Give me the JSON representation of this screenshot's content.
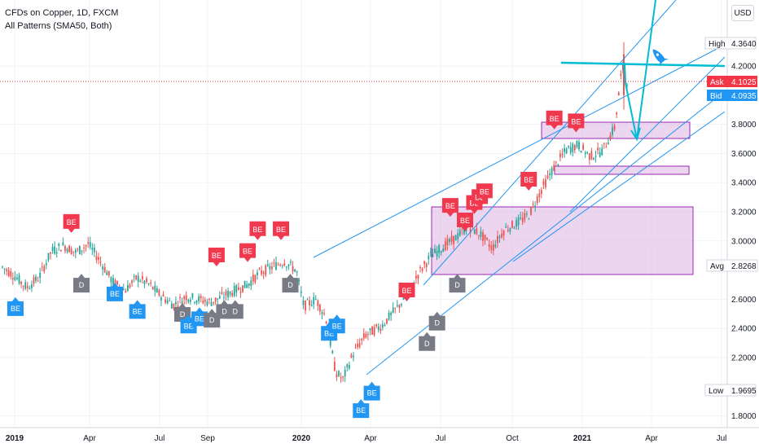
{
  "header": {
    "title": "CFDs on Copper, 1D, FXCM",
    "indicator": "All Patterns (SMA50, Both)",
    "currency": "USD"
  },
  "colors": {
    "up": "#26a69a",
    "down": "#ef5350",
    "bearish_badge": "#f0394f",
    "bullish_badge": "#2196f3",
    "doji_badge": "#787b86",
    "trendline": "#2196f3",
    "zone_fill": "#e1bee7",
    "zone_border": "#9c27b0",
    "drawing": "#00bcd4",
    "ask": "#f23645",
    "bid": "#2196f3"
  },
  "price_labels": {
    "high_label": "High",
    "high_value": "4.3640",
    "ask_label": "Ask",
    "ask_value": "4.1025",
    "bid_label": "Bid",
    "bid_value": "4.0935",
    "avg_label": "Avg",
    "avg_value": "2.8268",
    "low_label": "Low",
    "low_value": "1.9695"
  },
  "chart_data": {
    "type": "candlestick",
    "title": "CFDs on Copper, 1D, FXCM",
    "ylim": [
      1.72,
      4.75
    ],
    "y_ticks": [
      "4.2000",
      "3.8000",
      "3.6000",
      "3.4000",
      "3.2000",
      "3.0000",
      "2.6000",
      "2.4000",
      "2.2000",
      "1.8000"
    ],
    "x_ticks": [
      "2019",
      "Apr",
      "Jul",
      "Sep",
      "2020",
      "Apr",
      "Jul",
      "Oct",
      "2021",
      "Apr",
      "Jul"
    ],
    "grid": true,
    "path_points": [
      {
        "t": 0,
        "v": 2.82
      },
      {
        "t": 0.5,
        "v": 2.76
      },
      {
        "t": 1,
        "v": 2.68
      },
      {
        "t": 1.5,
        "v": 2.75
      },
      {
        "t": 2,
        "v": 2.93
      },
      {
        "t": 2.5,
        "v": 2.97
      },
      {
        "t": 3,
        "v": 2.92
      },
      {
        "t": 3.5,
        "v": 2.98
      },
      {
        "t": 4,
        "v": 2.86
      },
      {
        "t": 4.5,
        "v": 2.72
      },
      {
        "t": 5,
        "v": 2.66
      },
      {
        "t": 5.5,
        "v": 2.75
      },
      {
        "t": 6,
        "v": 2.7
      },
      {
        "t": 6.5,
        "v": 2.62
      },
      {
        "t": 7,
        "v": 2.56
      },
      {
        "t": 7.5,
        "v": 2.62
      },
      {
        "t": 8,
        "v": 2.6
      },
      {
        "t": 8.5,
        "v": 2.58
      },
      {
        "t": 9,
        "v": 2.62
      },
      {
        "t": 9.5,
        "v": 2.66
      },
      {
        "t": 10,
        "v": 2.7
      },
      {
        "t": 10.5,
        "v": 2.78
      },
      {
        "t": 11,
        "v": 2.82
      },
      {
        "t": 11.5,
        "v": 2.86
      },
      {
        "t": 12,
        "v": 2.8
      },
      {
        "t": 12.3,
        "v": 2.55
      },
      {
        "t": 12.8,
        "v": 2.6
      },
      {
        "t": 13.2,
        "v": 2.48
      },
      {
        "t": 13.6,
        "v": 2.1
      },
      {
        "t": 13.9,
        "v": 2.05
      },
      {
        "t": 14.3,
        "v": 2.22
      },
      {
        "t": 14.8,
        "v": 2.35
      },
      {
        "t": 15.5,
        "v": 2.42
      },
      {
        "t": 16,
        "v": 2.52
      },
      {
        "t": 16.5,
        "v": 2.62
      },
      {
        "t": 17,
        "v": 2.78
      },
      {
        "t": 17.5,
        "v": 2.9
      },
      {
        "t": 18,
        "v": 2.96
      },
      {
        "t": 18.5,
        "v": 3.02
      },
      {
        "t": 19,
        "v": 3.1
      },
      {
        "t": 19.5,
        "v": 3.05
      },
      {
        "t": 20,
        "v": 2.95
      },
      {
        "t": 20.5,
        "v": 3.08
      },
      {
        "t": 21,
        "v": 3.12
      },
      {
        "t": 21.5,
        "v": 3.18
      },
      {
        "t": 22,
        "v": 3.35
      },
      {
        "t": 22.5,
        "v": 3.5
      },
      {
        "t": 23,
        "v": 3.62
      },
      {
        "t": 23.5,
        "v": 3.66
      },
      {
        "t": 24,
        "v": 3.58
      },
      {
        "t": 24.5,
        "v": 3.62
      },
      {
        "t": 25,
        "v": 3.78
      },
      {
        "t": 25.3,
        "v": 4.2
      },
      {
        "t": 25.5,
        "v": 4.1
      }
    ],
    "badges": [
      {
        "type": "BE",
        "kind": "bull",
        "date": "2019-01-02",
        "price": 2.62
      },
      {
        "type": "BE",
        "kind": "bear",
        "date": "2019-03-15",
        "price": 3.05
      },
      {
        "type": "D",
        "kind": "doji",
        "date": "2019-03-28",
        "price": 2.78
      },
      {
        "type": "BE",
        "kind": "bull",
        "date": "2019-05-10",
        "price": 2.72
      },
      {
        "type": "BE",
        "kind": "bull",
        "date": "2019-06-08",
        "price": 2.6
      },
      {
        "type": "D",
        "kind": "doji",
        "date": "2019-08-05",
        "price": 2.58
      },
      {
        "type": "BE",
        "kind": "bull",
        "date": "2019-08-13",
        "price": 2.5
      },
      {
        "type": "BE",
        "kind": "bull",
        "date": "2019-08-27",
        "price": 2.55
      },
      {
        "type": "D",
        "kind": "doji",
        "date": "2019-09-12",
        "price": 2.54
      },
      {
        "type": "BE",
        "kind": "bear",
        "date": "2019-09-18",
        "price": 2.82
      },
      {
        "type": "D",
        "kind": "doji",
        "date": "2019-09-28",
        "price": 2.6
      },
      {
        "type": "D",
        "kind": "doji",
        "date": "2019-10-12",
        "price": 2.6
      },
      {
        "type": "BE",
        "kind": "bear",
        "date": "2019-10-28",
        "price": 2.85
      },
      {
        "type": "BE",
        "kind": "bear",
        "date": "2019-11-10",
        "price": 3.0
      },
      {
        "type": "BE",
        "kind": "bear",
        "date": "2019-12-10",
        "price": 3.0
      },
      {
        "type": "D",
        "kind": "doji",
        "date": "2019-12-22",
        "price": 2.78
      },
      {
        "type": "BE",
        "kind": "bull",
        "date": "2020-02-10",
        "price": 2.45
      },
      {
        "type": "BE",
        "kind": "bull",
        "date": "2020-02-20",
        "price": 2.5
      },
      {
        "type": "BE",
        "kind": "bull",
        "date": "2020-03-22",
        "price": 1.92
      },
      {
        "type": "BE",
        "kind": "bull",
        "date": "2020-04-05",
        "price": 2.04
      },
      {
        "type": "BE",
        "kind": "bear",
        "date": "2020-05-20",
        "price": 2.58
      },
      {
        "type": "D",
        "kind": "doji",
        "date": "2020-06-15",
        "price": 2.38
      },
      {
        "type": "D",
        "kind": "doji",
        "date": "2020-06-28",
        "price": 2.52
      },
      {
        "type": "BE",
        "kind": "bear",
        "date": "2020-07-15",
        "price": 3.16
      },
      {
        "type": "D",
        "kind": "doji",
        "date": "2020-07-24",
        "price": 2.78
      },
      {
        "type": "BE",
        "kind": "bear",
        "date": "2020-08-03",
        "price": 3.06
      },
      {
        "type": "BE",
        "kind": "bear",
        "date": "2020-08-15",
        "price": 3.18
      },
      {
        "type": "BE",
        "kind": "bear",
        "date": "2020-08-22",
        "price": 3.22
      },
      {
        "type": "BE",
        "kind": "bear",
        "date": "2020-08-28",
        "price": 3.26
      },
      {
        "type": "BE",
        "kind": "bear",
        "date": "2020-10-24",
        "price": 3.34
      },
      {
        "type": "BE",
        "kind": "bear",
        "date": "2020-11-26",
        "price": 3.76
      },
      {
        "type": "BE",
        "kind": "bear",
        "date": "2020-12-24",
        "price": 3.74
      }
    ]
  }
}
